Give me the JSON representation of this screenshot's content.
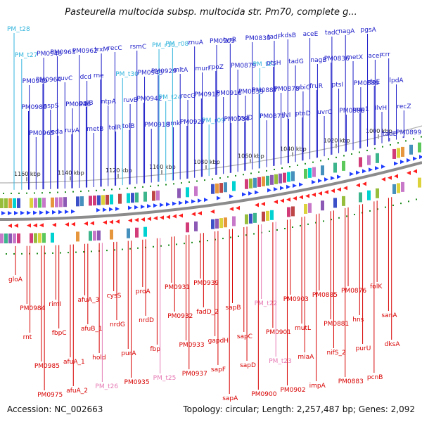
{
  "title": "Pasteurella multocida subsp. multocida str. Pm70, complete g...",
  "footer": {
    "accession": "Accession: NC_002663",
    "summary": "Topology: circular; Length: 2,257,487 bp; Genes: 2,092"
  },
  "colors": {
    "forward_label": "#1c1cc8",
    "reverse_label": "#d80000",
    "rna_forward": "#32b4dc",
    "rna_reverse": "#e67ab4",
    "backbone": "#8c8c8c",
    "tick_dots": "#1e8c1e"
  },
  "ticks": [
    "1160 kbp",
    "1140 kbp",
    "1120 kbp",
    "1100 kbp",
    "1080 kbp",
    "1060 kbp",
    "1040 kbp",
    "1020 kbp",
    "1000 kbp"
  ],
  "forward_genes": [
    "PM_t28",
    "PM_t27",
    "PM0949",
    "PM0986",
    "PM0965",
    "PM0948",
    "PM0964",
    "aspS",
    "eda",
    "PM0963",
    "ruvC",
    "PM0946",
    "ruvA",
    "PM0962",
    "dcd",
    "ppiB",
    "metB",
    "trxM",
    "rne",
    "ntpA",
    "tolR",
    "recC",
    "PM_t30",
    "ruvB",
    "tolB",
    "rsmC",
    "PM0943",
    "PM0942",
    "PM0918",
    "PM_r10",
    "PM0929",
    "PM_t24",
    "gmk",
    "PM_r08",
    "mltA",
    "recG",
    "PM0927",
    "znuA",
    "murI",
    "PM0910",
    "PM_r09",
    "PM0909",
    "rpoZ",
    "PM0916",
    "PM0934",
    "tyrR",
    "PM0879",
    "PM0859",
    "tadD",
    "PM0830",
    "PM_t21",
    "PM0887",
    "PM0871",
    "tadF",
    "ptsH",
    "PM0878",
    "ilvI",
    "kdsB",
    "tadG",
    "ubiG",
    "ptnD",
    "aceE",
    "nagB",
    "fruR",
    "uvrC",
    "tadC",
    "PM0836",
    "ptsI",
    "PM0886",
    "nagA",
    "metX",
    "PM0889",
    "uup1",
    "pgsA",
    "aceF",
    "rfaE",
    "ilvH",
    "tadE",
    "crr",
    "lpdA",
    "recZ",
    "PM0899"
  ],
  "reverse_genes": [
    "gloA",
    "PM0984",
    "rnt",
    "PM0985",
    "PM0975",
    "rimI",
    "fbpC",
    "afuA_1",
    "afuA_2",
    "afuA_3",
    "afuB_1",
    "hold",
    "PM_t26",
    "cysS",
    "nrdG",
    "purA",
    "PM0935",
    "proA",
    "nrdD",
    "fbp",
    "PM_t25",
    "PM0931",
    "PM0932",
    "PM0933",
    "PM0937",
    "PM0939",
    "fadD_2",
    "gapdH",
    "sapF",
    "sapA",
    "sapB",
    "sapC",
    "sapD",
    "PM0900",
    "PM_t22",
    "PM0901",
    "PM_t23",
    "PM0902",
    "PM0903",
    "mutL",
    "miaA",
    "impA",
    "PM0885",
    "PM0881",
    "nifS_2",
    "PM0883",
    "PM0876",
    "hns",
    "purU",
    "pcnB",
    "folK",
    "sanA",
    "dksA"
  ]
}
